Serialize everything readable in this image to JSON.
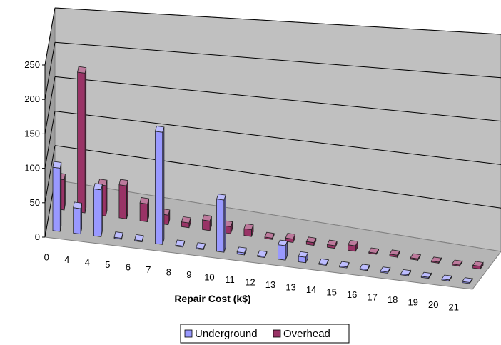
{
  "chart_data": {
    "type": "bar",
    "style": "3d-clustered-column",
    "xlabel": "Repair Cost (k$)",
    "ylabel": "",
    "ylim": [
      0,
      250
    ],
    "yticks": [
      0,
      50,
      100,
      150,
      200,
      250
    ],
    "gridlines": true,
    "legend_position": "bottom",
    "categories": [
      "0",
      "4",
      "4",
      "5",
      "6",
      "7",
      "8",
      "9",
      "10",
      "11",
      "12",
      "13",
      "13",
      "14",
      "15",
      "16",
      "17",
      "18",
      "19",
      "20",
      "21"
    ],
    "series": [
      {
        "name": "Underground",
        "color": "#9999ff",
        "values": [
          92,
          37,
          68,
          0,
          0,
          163,
          0,
          0,
          76,
          3,
          0,
          21,
          8,
          0,
          0,
          0,
          0,
          0,
          0,
          0,
          0
        ]
      },
      {
        "name": "Overhead",
        "color": "#993366",
        "values": [
          44,
          203,
          44,
          48,
          26,
          14,
          7,
          14,
          10,
          10,
          2,
          5,
          4,
          4,
          8,
          1,
          3,
          2,
          1,
          1,
          4
        ]
      }
    ]
  }
}
